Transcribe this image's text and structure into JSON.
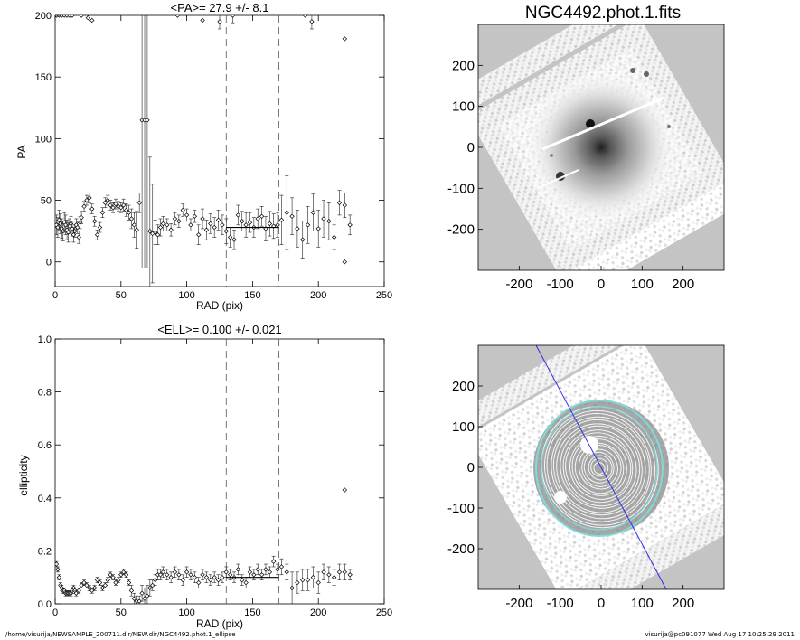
{
  "footer": {
    "path": "/home/visurija/NEWSAMPLE_200711.dir/NEW.dir/NGC4492.phot.1_ellipse",
    "user_time": "visurija@pc091077  Wed Aug 17 10:25:29 2011"
  },
  "colors": {
    "frame": "#000000",
    "panel_gray": "#c4c4c4",
    "contour": "#ffffff",
    "ellipse_outer": "#7fdada",
    "pa_line": "#2d2df0"
  },
  "chart_data": [
    {
      "type": "scatter",
      "title": "<PA>=  27.9 +/-   8.1",
      "xlabel": "RAD (pix)",
      "ylabel": "PA",
      "xlim": [
        0,
        250
      ],
      "ylim": [
        -20,
        200
      ],
      "xticks": [
        "0",
        "50",
        "100",
        "150",
        "200",
        "250"
      ],
      "yticks": [
        "0",
        "50",
        "100",
        "150",
        "200"
      ],
      "grid": false,
      "vlines": [
        130,
        170
      ],
      "mean_segment": {
        "x": [
          130,
          170
        ],
        "y": 28
      },
      "series": [
        {
          "x": [
            1,
            2,
            3,
            4,
            5,
            6,
            7,
            8,
            9,
            10,
            11,
            12,
            13,
            14,
            15,
            16,
            17,
            18,
            19,
            20,
            22,
            24,
            26,
            28,
            30,
            32,
            34,
            36,
            38,
            40,
            42,
            44,
            46,
            48,
            50,
            52,
            54,
            56,
            58,
            60,
            62,
            64,
            66,
            68,
            70,
            72,
            74,
            76,
            78,
            80,
            82,
            85,
            88,
            91,
            94,
            97,
            100,
            103,
            106,
            109,
            112,
            115,
            118,
            121,
            124,
            127,
            130,
            133,
            136,
            139,
            142,
            145,
            148,
            151,
            154,
            157,
            160,
            163,
            166,
            169,
            172,
            176,
            180,
            184,
            188,
            192,
            196,
            200,
            204,
            208,
            212,
            216,
            220,
            224
          ],
          "y": [
            30,
            28,
            34,
            31,
            27,
            25,
            32,
            30,
            26,
            24,
            29,
            31,
            27,
            22,
            25,
            30,
            28,
            20,
            32,
            36,
            45,
            50,
            52,
            43,
            33,
            22,
            28,
            40,
            48,
            50,
            46,
            44,
            47,
            45,
            44,
            46,
            42,
            40,
            35,
            30,
            26,
            48,
            115,
            115,
            115,
            25,
            23,
            24,
            22,
            28,
            31,
            30,
            26,
            35,
            33,
            42,
            38,
            30,
            37,
            22,
            35,
            26,
            31,
            28,
            34,
            30,
            25,
            20,
            18,
            38,
            33,
            30,
            32,
            28,
            35,
            37,
            27,
            31,
            29,
            30,
            34,
            40,
            37,
            27,
            18,
            30,
            40,
            27,
            35,
            33,
            20,
            48,
            46,
            30
          ],
          "yerr": [
            8,
            8,
            8,
            8,
            8,
            8,
            8,
            8,
            8,
            8,
            6,
            6,
            6,
            6,
            5,
            5,
            5,
            5,
            5,
            5,
            4,
            4,
            4,
            4,
            4,
            4,
            4,
            4,
            4,
            4,
            4,
            4,
            4,
            4,
            4,
            5,
            5,
            6,
            8,
            10,
            15,
            8,
            120,
            120,
            120,
            60,
            40,
            10,
            8,
            7,
            6,
            5,
            5,
            5,
            5,
            5,
            5,
            5,
            5,
            8,
            8,
            8,
            8,
            8,
            8,
            8,
            10,
            8,
            8,
            8,
            8,
            10,
            8,
            8,
            8,
            8,
            10,
            10,
            10,
            10,
            20,
            30,
            15,
            15,
            15,
            15,
            15,
            15,
            15,
            15,
            10,
            10,
            10,
            8
          ]
        },
        {
          "x": [
            1,
            3,
            5,
            7,
            9,
            11,
            13,
            20,
            25,
            28,
            93,
            112,
            125,
            135,
            190,
            195
          ],
          "y": [
            200,
            200,
            200,
            200,
            200,
            200,
            200,
            200,
            198,
            196,
            200,
            196,
            195,
            200,
            200,
            195
          ],
          "yerr": [
            0,
            0,
            0,
            0,
            0,
            0,
            0,
            0,
            0,
            0,
            0,
            0,
            6,
            6,
            0,
            6
          ]
        },
        {
          "x": [
            220,
            220
          ],
          "y": [
            181,
            0
          ],
          "yerr": [
            0,
            0
          ]
        }
      ]
    },
    {
      "type": "scatter",
      "title": "<ELL>= 0.100 +/-  0.021",
      "xlabel": "RAD (pix)",
      "ylabel": "ellipticity",
      "xlim": [
        0,
        250
      ],
      "ylim": [
        0,
        1
      ],
      "xticks": [
        "0",
        "50",
        "100",
        "150",
        "200",
        "250"
      ],
      "yticks": [
        "0.0",
        "0.2",
        "0.4",
        "0.6",
        "0.8",
        "1.0"
      ],
      "grid": false,
      "vlines": [
        130,
        170
      ],
      "mean_segment": {
        "x": [
          130,
          170
        ],
        "y": 0.1
      },
      "series": [
        {
          "x": [
            1,
            2,
            3,
            4,
            5,
            6,
            7,
            8,
            9,
            10,
            11,
            12,
            13,
            14,
            15,
            16,
            18,
            20,
            22,
            24,
            26,
            28,
            30,
            32,
            34,
            36,
            38,
            40,
            42,
            44,
            46,
            48,
            50,
            52,
            54,
            56,
            58,
            60,
            62,
            64,
            66,
            68,
            70,
            72,
            74,
            76,
            78,
            80,
            82,
            85,
            88,
            91,
            94,
            97,
            100,
            103,
            106,
            109,
            112,
            115,
            118,
            121,
            124,
            127,
            130,
            133,
            136,
            139,
            142,
            145,
            148,
            151,
            154,
            157,
            160,
            163,
            166,
            169,
            172,
            176,
            180,
            184,
            188,
            192,
            196,
            200,
            204,
            208,
            212,
            216,
            220,
            224
          ],
          "y": [
            0.15,
            0.13,
            0.1,
            0.07,
            0.06,
            0.05,
            0.05,
            0.04,
            0.04,
            0.04,
            0.04,
            0.04,
            0.05,
            0.06,
            0.05,
            0.04,
            0.05,
            0.07,
            0.08,
            0.07,
            0.06,
            0.05,
            0.06,
            0.09,
            0.08,
            0.06,
            0.07,
            0.09,
            0.11,
            0.1,
            0.08,
            0.09,
            0.11,
            0.12,
            0.11,
            0.08,
            0.05,
            0.02,
            0.01,
            0.01,
            0.04,
            0.02,
            0.03,
            0.06,
            0.07,
            0.09,
            0.11,
            0.11,
            0.12,
            0.11,
            0.1,
            0.12,
            0.11,
            0.09,
            0.12,
            0.11,
            0.1,
            0.08,
            0.11,
            0.1,
            0.09,
            0.1,
            0.09,
            0.1,
            0.12,
            0.11,
            0.1,
            0.13,
            0.09,
            0.08,
            0.12,
            0.11,
            0.13,
            0.11,
            0.13,
            0.12,
            0.16,
            0.13,
            0.14,
            0.12,
            0.06,
            0.08,
            0.09,
            0.09,
            0.1,
            0.08,
            0.12,
            0.11,
            0.1,
            0.12,
            0.12,
            0.11
          ],
          "yerr": [
            0.01,
            0.01,
            0.01,
            0.01,
            0.01,
            0.01,
            0.01,
            0.01,
            0.01,
            0.01,
            0.01,
            0.01,
            0.01,
            0.01,
            0.01,
            0.01,
            0.01,
            0.01,
            0.01,
            0.01,
            0.01,
            0.01,
            0.01,
            0.01,
            0.01,
            0.01,
            0.01,
            0.01,
            0.01,
            0.01,
            0.01,
            0.01,
            0.01,
            0.01,
            0.01,
            0.01,
            0.02,
            0.02,
            0.02,
            0.02,
            0.03,
            0.04,
            0.04,
            0.03,
            0.02,
            0.02,
            0.02,
            0.02,
            0.02,
            0.02,
            0.02,
            0.02,
            0.02,
            0.02,
            0.02,
            0.02,
            0.02,
            0.02,
            0.02,
            0.02,
            0.02,
            0.02,
            0.02,
            0.02,
            0.02,
            0.02,
            0.02,
            0.02,
            0.02,
            0.02,
            0.02,
            0.02,
            0.02,
            0.02,
            0.02,
            0.02,
            0.02,
            0.02,
            0.03,
            0.03,
            0.06,
            0.04,
            0.04,
            0.04,
            0.04,
            0.04,
            0.03,
            0.03,
            0.03,
            0.03,
            0.03,
            0.02
          ]
        },
        {
          "x": [
            220
          ],
          "y": [
            0.43
          ],
          "yerr": [
            0
          ]
        }
      ]
    }
  ],
  "images": [
    {
      "title": "NGC4492.phot.1.fits",
      "xticks": [
        "-200",
        "-100",
        "0",
        "100",
        "200"
      ],
      "yticks": [
        "200",
        "100",
        "0",
        "-100",
        "-200"
      ]
    },
    {
      "title": "",
      "xticks": [
        "-200",
        "-100",
        "0",
        "100",
        "200"
      ],
      "yticks": [
        "200",
        "100",
        "0",
        "-100",
        "-200"
      ]
    }
  ]
}
